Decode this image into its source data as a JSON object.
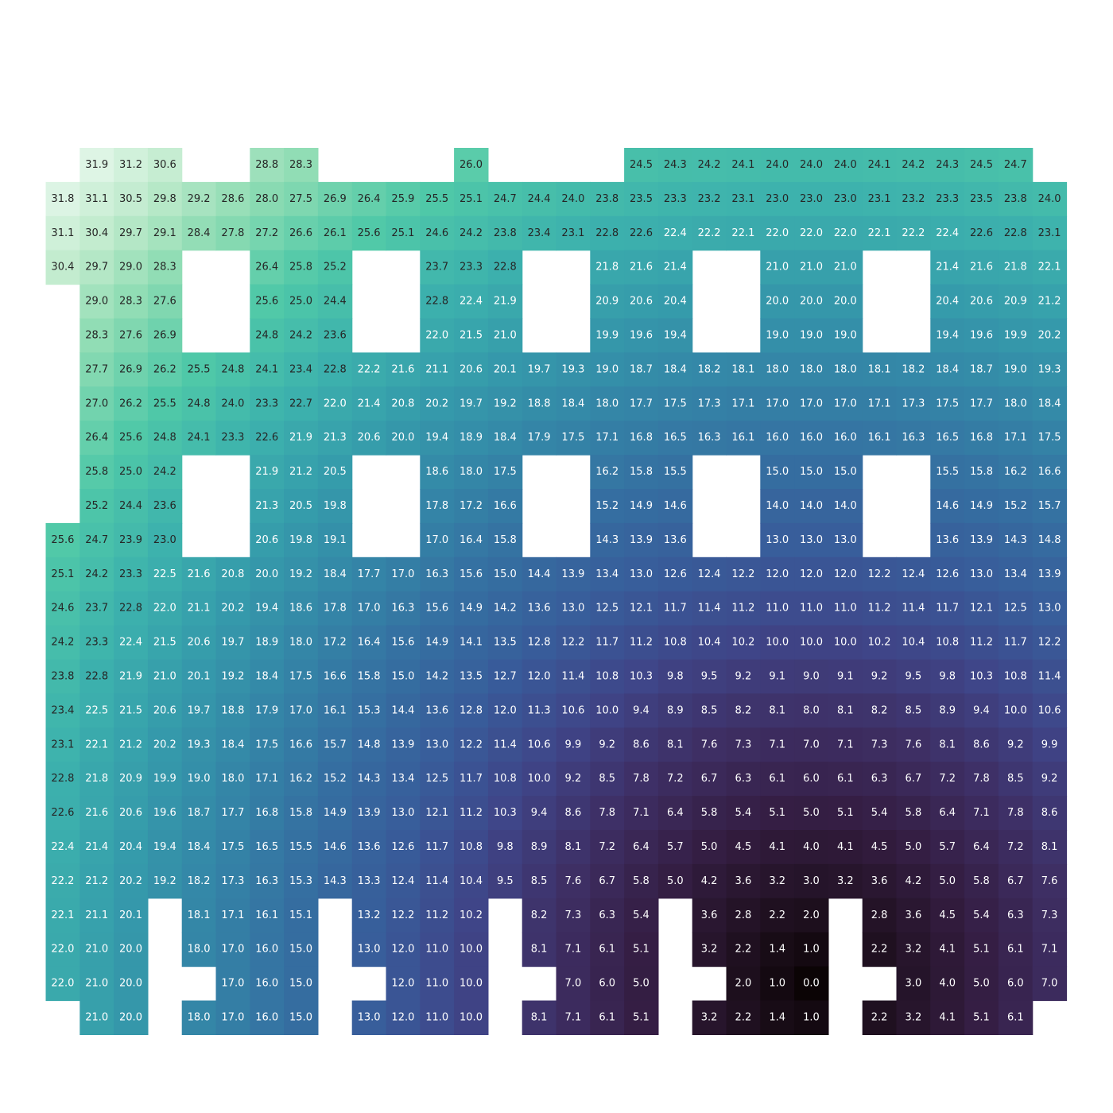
{
  "chart_data": {
    "type": "heatmap",
    "title": "",
    "xlabel": "",
    "ylabel": "",
    "colormap": "mako",
    "missing_color": "#ffffff",
    "vmin": 0.0,
    "vmax": 31.9,
    "rows": [
      [
        null,
        31.9,
        31.2,
        30.6,
        null,
        null,
        28.8,
        28.3,
        null,
        null,
        null,
        null,
        26.0,
        null,
        null,
        null,
        null,
        24.5,
        24.3,
        24.2,
        24.1,
        24.0,
        24.0,
        24.0,
        24.1,
        24.2,
        24.3,
        24.5,
        24.7,
        null
      ],
      [
        31.8,
        31.1,
        30.5,
        29.8,
        29.2,
        28.6,
        28.0,
        27.5,
        26.9,
        26.4,
        25.9,
        25.5,
        25.1,
        24.7,
        24.4,
        24.0,
        23.8,
        23.5,
        23.3,
        23.2,
        23.1,
        23.0,
        23.0,
        23.0,
        23.1,
        23.2,
        23.3,
        23.5,
        23.8,
        24.0
      ],
      [
        31.1,
        30.4,
        29.7,
        29.1,
        28.4,
        27.8,
        27.2,
        26.6,
        26.1,
        25.6,
        25.1,
        24.6,
        24.2,
        23.8,
        23.4,
        23.1,
        22.8,
        22.6,
        22.4,
        22.2,
        22.1,
        22.0,
        22.0,
        22.0,
        22.1,
        22.2,
        22.4,
        22.6,
        22.8,
        23.1
      ],
      [
        30.4,
        29.7,
        29.0,
        28.3,
        null,
        null,
        26.4,
        25.8,
        25.2,
        null,
        null,
        23.7,
        23.3,
        22.8,
        null,
        null,
        21.8,
        21.6,
        21.4,
        null,
        null,
        21.0,
        21.0,
        21.0,
        null,
        null,
        21.4,
        21.6,
        21.8,
        22.1
      ],
      [
        null,
        29.0,
        28.3,
        27.6,
        null,
        null,
        25.6,
        25.0,
        24.4,
        null,
        null,
        22.8,
        22.4,
        21.9,
        null,
        null,
        20.9,
        20.6,
        20.4,
        null,
        null,
        20.0,
        20.0,
        20.0,
        null,
        null,
        20.4,
        20.6,
        20.9,
        21.2
      ],
      [
        null,
        28.3,
        27.6,
        26.9,
        null,
        null,
        24.8,
        24.2,
        23.6,
        null,
        null,
        22.0,
        21.5,
        21.0,
        null,
        null,
        19.9,
        19.6,
        19.4,
        null,
        null,
        19.0,
        19.0,
        19.0,
        null,
        null,
        19.4,
        19.6,
        19.9,
        20.2
      ],
      [
        null,
        27.7,
        26.9,
        26.2,
        25.5,
        24.8,
        24.1,
        23.4,
        22.8,
        22.2,
        21.6,
        21.1,
        20.6,
        20.1,
        19.7,
        19.3,
        19.0,
        18.7,
        18.4,
        18.2,
        18.1,
        18.0,
        18.0,
        18.0,
        18.1,
        18.2,
        18.4,
        18.7,
        19.0,
        19.3
      ],
      [
        null,
        27.0,
        26.2,
        25.5,
        24.8,
        24.0,
        23.3,
        22.7,
        22.0,
        21.4,
        20.8,
        20.2,
        19.7,
        19.2,
        18.8,
        18.4,
        18.0,
        17.7,
        17.5,
        17.3,
        17.1,
        17.0,
        17.0,
        17.0,
        17.1,
        17.3,
        17.5,
        17.7,
        18.0,
        18.4
      ],
      [
        null,
        26.4,
        25.6,
        24.8,
        24.1,
        23.3,
        22.6,
        21.9,
        21.3,
        20.6,
        20.0,
        19.4,
        18.9,
        18.4,
        17.9,
        17.5,
        17.1,
        16.8,
        16.5,
        16.3,
        16.1,
        16.0,
        16.0,
        16.0,
        16.1,
        16.3,
        16.5,
        16.8,
        17.1,
        17.5
      ],
      [
        null,
        25.8,
        25.0,
        24.2,
        null,
        null,
        21.9,
        21.2,
        20.5,
        null,
        null,
        18.6,
        18.0,
        17.5,
        null,
        null,
        16.2,
        15.8,
        15.5,
        null,
        null,
        15.0,
        15.0,
        15.0,
        null,
        null,
        15.5,
        15.8,
        16.2,
        16.6
      ],
      [
        null,
        25.2,
        24.4,
        23.6,
        null,
        null,
        21.3,
        20.5,
        19.8,
        null,
        null,
        17.8,
        17.2,
        16.6,
        null,
        null,
        15.2,
        14.9,
        14.6,
        null,
        null,
        14.0,
        14.0,
        14.0,
        null,
        null,
        14.6,
        14.9,
        15.2,
        15.7
      ],
      [
        25.6,
        24.7,
        23.9,
        23.0,
        null,
        null,
        20.6,
        19.8,
        19.1,
        null,
        null,
        17.0,
        16.4,
        15.8,
        null,
        null,
        14.3,
        13.9,
        13.6,
        null,
        null,
        13.0,
        13.0,
        13.0,
        null,
        null,
        13.6,
        13.9,
        14.3,
        14.8
      ],
      [
        25.1,
        24.2,
        23.3,
        22.5,
        21.6,
        20.8,
        20.0,
        19.2,
        18.4,
        17.7,
        17.0,
        16.3,
        15.6,
        15.0,
        14.4,
        13.9,
        13.4,
        13.0,
        12.6,
        12.4,
        12.2,
        12.0,
        12.0,
        12.0,
        12.2,
        12.4,
        12.6,
        13.0,
        13.4,
        13.9
      ],
      [
        24.6,
        23.7,
        22.8,
        22.0,
        21.1,
        20.2,
        19.4,
        18.6,
        17.8,
        17.0,
        16.3,
        15.6,
        14.9,
        14.2,
        13.6,
        13.0,
        12.5,
        12.1,
        11.7,
        11.4,
        11.2,
        11.0,
        11.0,
        11.0,
        11.2,
        11.4,
        11.7,
        12.1,
        12.5,
        13.0
      ],
      [
        24.2,
        23.3,
        22.4,
        21.5,
        20.6,
        19.7,
        18.9,
        18.0,
        17.2,
        16.4,
        15.6,
        14.9,
        14.1,
        13.5,
        12.8,
        12.2,
        11.7,
        11.2,
        10.8,
        10.4,
        10.2,
        10.0,
        10.0,
        10.0,
        10.2,
        10.4,
        10.8,
        11.2,
        11.7,
        12.2
      ],
      [
        23.8,
        22.8,
        21.9,
        21.0,
        20.1,
        19.2,
        18.4,
        17.5,
        16.6,
        15.8,
        15.0,
        14.2,
        13.5,
        12.7,
        12.0,
        11.4,
        10.8,
        10.3,
        9.8,
        9.5,
        9.2,
        9.1,
        9.0,
        9.1,
        9.2,
        9.5,
        9.8,
        10.3,
        10.8,
        11.4
      ],
      [
        23.4,
        22.5,
        21.5,
        20.6,
        19.7,
        18.8,
        17.9,
        17.0,
        16.1,
        15.3,
        14.4,
        13.6,
        12.8,
        12.0,
        11.3,
        10.6,
        10.0,
        9.4,
        8.9,
        8.5,
        8.2,
        8.1,
        8.0,
        8.1,
        8.2,
        8.5,
        8.9,
        9.4,
        10.0,
        10.6
      ],
      [
        23.1,
        22.1,
        21.2,
        20.2,
        19.3,
        18.4,
        17.5,
        16.6,
        15.7,
        14.8,
        13.9,
        13.0,
        12.2,
        11.4,
        10.6,
        9.9,
        9.2,
        8.6,
        8.1,
        7.6,
        7.3,
        7.1,
        7.0,
        7.1,
        7.3,
        7.6,
        8.1,
        8.6,
        9.2,
        9.9
      ],
      [
        22.8,
        21.8,
        20.9,
        19.9,
        19.0,
        18.0,
        17.1,
        16.2,
        15.2,
        14.3,
        13.4,
        12.5,
        11.7,
        10.8,
        10.0,
        9.2,
        8.5,
        7.8,
        7.2,
        6.7,
        6.3,
        6.1,
        6.0,
        6.1,
        6.3,
        6.7,
        7.2,
        7.8,
        8.5,
        9.2
      ],
      [
        22.6,
        21.6,
        20.6,
        19.6,
        18.7,
        17.7,
        16.8,
        15.8,
        14.9,
        13.9,
        13.0,
        12.1,
        11.2,
        10.3,
        9.4,
        8.6,
        7.8,
        7.1,
        6.4,
        5.8,
        5.4,
        5.1,
        5.0,
        5.1,
        5.4,
        5.8,
        6.4,
        7.1,
        7.8,
        8.6
      ],
      [
        22.4,
        21.4,
        20.4,
        19.4,
        18.4,
        17.5,
        16.5,
        15.5,
        14.6,
        13.6,
        12.6,
        11.7,
        10.8,
        9.8,
        8.9,
        8.1,
        7.2,
        6.4,
        5.7,
        5.0,
        4.5,
        4.1,
        4.0,
        4.1,
        4.5,
        5.0,
        5.7,
        6.4,
        7.2,
        8.1
      ],
      [
        22.2,
        21.2,
        20.2,
        19.2,
        18.2,
        17.3,
        16.3,
        15.3,
        14.3,
        13.3,
        12.4,
        11.4,
        10.4,
        9.5,
        8.5,
        7.6,
        6.7,
        5.8,
        5.0,
        4.2,
        3.6,
        3.2,
        3.0,
        3.2,
        3.6,
        4.2,
        5.0,
        5.8,
        6.7,
        7.6
      ],
      [
        22.1,
        21.1,
        20.1,
        null,
        18.1,
        17.1,
        16.1,
        15.1,
        null,
        13.2,
        12.2,
        11.2,
        10.2,
        null,
        8.2,
        7.3,
        6.3,
        5.4,
        null,
        3.6,
        2.8,
        2.2,
        2.0,
        null,
        2.8,
        3.6,
        4.5,
        5.4,
        6.3,
        7.3
      ],
      [
        22.0,
        21.0,
        20.0,
        null,
        18.0,
        17.0,
        16.0,
        15.0,
        null,
        13.0,
        12.0,
        11.0,
        10.0,
        null,
        8.1,
        7.1,
        6.1,
        5.1,
        null,
        3.2,
        2.2,
        1.4,
        1.0,
        null,
        2.2,
        3.2,
        4.1,
        5.1,
        6.1,
        7.1
      ],
      [
        22.0,
        21.0,
        20.0,
        null,
        null,
        17.0,
        16.0,
        15.0,
        null,
        null,
        12.0,
        11.0,
        10.0,
        null,
        null,
        7.0,
        6.0,
        5.0,
        null,
        null,
        2.0,
        1.0,
        0.0,
        null,
        null,
        3.0,
        4.0,
        5.0,
        6.0,
        7.0
      ],
      [
        null,
        21.0,
        20.0,
        null,
        18.0,
        17.0,
        16.0,
        15.0,
        null,
        13.0,
        12.0,
        11.0,
        10.0,
        null,
        8.1,
        7.1,
        6.1,
        5.1,
        null,
        3.2,
        2.2,
        1.4,
        1.0,
        null,
        2.2,
        3.2,
        4.1,
        5.1,
        6.1,
        null
      ]
    ]
  }
}
